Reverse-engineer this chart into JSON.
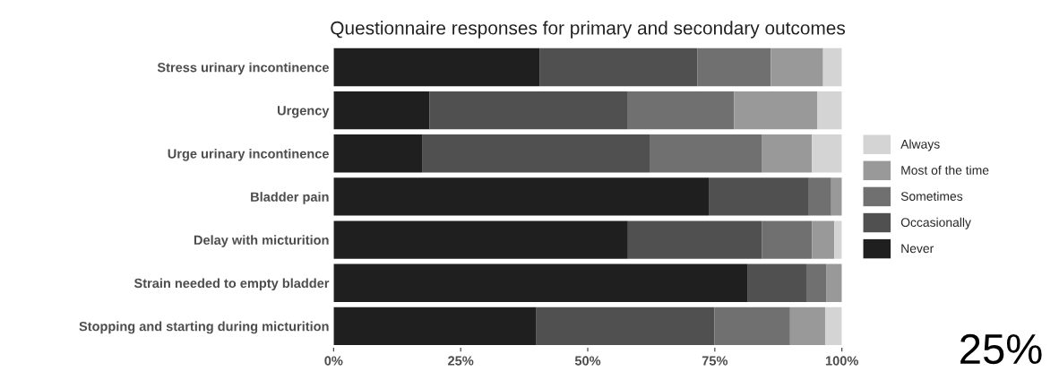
{
  "chart_data": {
    "type": "bar",
    "orientation": "horizontal",
    "stacked": true,
    "title": "Questionnaire responses for primary and secondary outcomes",
    "categories": [
      "Stress urinary incontinence",
      "Urgency",
      "Urge urinary incontinence",
      "Bladder pain",
      "Delay with micturition",
      "Strain needed to empty bladder",
      "Stopping and starting during micturition"
    ],
    "series": [
      {
        "name": "Never",
        "color": "#1f1f1f",
        "values": [
          40.5,
          18.9,
          17.4,
          73.8,
          57.9,
          81.5,
          39.9
        ]
      },
      {
        "name": "Occasionally",
        "color": "#505050",
        "values": [
          31.1,
          39.0,
          44.9,
          19.7,
          26.4,
          11.5,
          35.0
        ]
      },
      {
        "name": "Sometimes",
        "color": "#707070",
        "values": [
          14.4,
          20.9,
          21.9,
          4.4,
          9.8,
          3.9,
          14.9
        ]
      },
      {
        "name": "Most of the time",
        "color": "#999999",
        "values": [
          10.3,
          16.4,
          9.9,
          2.1,
          4.4,
          3.1,
          6.9
        ]
      },
      {
        "name": "Always",
        "color": "#d4d4d4",
        "values": [
          3.7,
          4.8,
          5.9,
          0,
          1.5,
          0,
          3.3
        ]
      }
    ],
    "xlim": [
      0,
      100
    ],
    "xticks": [
      {
        "value": 0,
        "label": "0%"
      },
      {
        "value": 25,
        "label": "25%"
      },
      {
        "value": 50,
        "label": "50%"
      },
      {
        "value": 75,
        "label": "75%"
      },
      {
        "value": 100,
        "label": "100%"
      }
    ],
    "legend": "right",
    "grid": false,
    "annotations": [
      "25%"
    ]
  }
}
